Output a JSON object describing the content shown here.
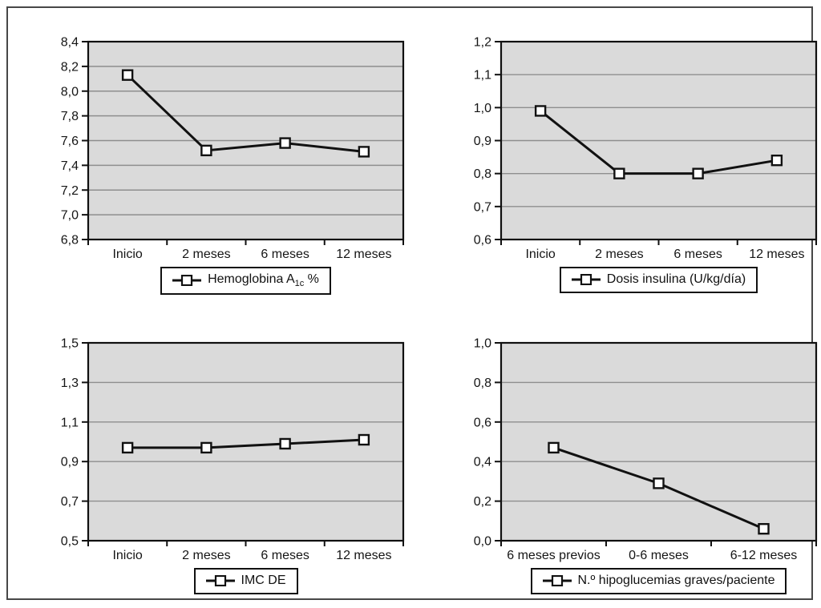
{
  "page": {
    "background": "#ffffff",
    "frame_color": "#474747"
  },
  "colors": {
    "plot_bg": "#dadada",
    "grid": "#8e8e8e",
    "axis": "#101010",
    "line": "#111111",
    "marker_fill": "#ffffff",
    "legend_border": "#111111"
  },
  "chart_data": [
    {
      "type": "line",
      "name": "hemoglobina-a1c",
      "categories": [
        "Inicio",
        "2 meses",
        "6 meses",
        "12 meses"
      ],
      "values": [
        8.13,
        7.52,
        7.58,
        7.51
      ],
      "ylim": [
        6.8,
        8.4
      ],
      "yticks": [
        {
          "v": 6.8,
          "label": "6,8"
        },
        {
          "v": 7.0,
          "label": "7,0"
        },
        {
          "v": 7.2,
          "label": "7,2"
        },
        {
          "v": 7.4,
          "label": "7,4"
        },
        {
          "v": 7.6,
          "label": "7,6"
        },
        {
          "v": 7.8,
          "label": "7,8"
        },
        {
          "v": 8.0,
          "label": "8,0"
        },
        {
          "v": 8.2,
          "label": "8,2"
        },
        {
          "v": 8.4,
          "label": "8,4"
        }
      ],
      "grid": "horizontal",
      "legend_position": "bottom",
      "legend": [
        {
          "t": "Hemoglobina A"
        },
        {
          "t": "1c",
          "sub": true
        },
        {
          "t": " %"
        }
      ]
    },
    {
      "type": "line",
      "name": "dosis-insulina",
      "categories": [
        "Inicio",
        "2 meses",
        "6 meses",
        "12 meses"
      ],
      "values": [
        0.99,
        0.8,
        0.8,
        0.84
      ],
      "ylim": [
        0.6,
        1.2
      ],
      "yticks": [
        {
          "v": 0.6,
          "label": "0,6"
        },
        {
          "v": 0.7,
          "label": "0,7"
        },
        {
          "v": 0.8,
          "label": "0,8"
        },
        {
          "v": 0.9,
          "label": "0,9"
        },
        {
          "v": 1.0,
          "label": "1,0"
        },
        {
          "v": 1.1,
          "label": "1,1"
        },
        {
          "v": 1.2,
          "label": "1,2"
        }
      ],
      "grid": "horizontal",
      "legend_position": "bottom",
      "legend": [
        {
          "t": "Dosis insulina (U/kg/día)"
        }
      ]
    },
    {
      "type": "line",
      "name": "imc-de",
      "categories": [
        "Inicio",
        "2 meses",
        "6 meses",
        "12 meses"
      ],
      "values": [
        0.97,
        0.97,
        0.99,
        1.01
      ],
      "ylim": [
        0.5,
        1.5
      ],
      "yticks": [
        {
          "v": 0.5,
          "label": "0,5"
        },
        {
          "v": 0.7,
          "label": "0,7"
        },
        {
          "v": 0.9,
          "label": "0,9"
        },
        {
          "v": 1.1,
          "label": "1,1"
        },
        {
          "v": 1.3,
          "label": "1,3"
        },
        {
          "v": 1.5,
          "label": "1,5"
        }
      ],
      "grid": "horizontal",
      "legend_position": "bottom",
      "legend": [
        {
          "t": "IMC DE"
        }
      ]
    },
    {
      "type": "line",
      "name": "hipoglucemias-graves",
      "categories": [
        "6 meses previos",
        "0-6 meses",
        "6-12 meses"
      ],
      "values": [
        0.47,
        0.29,
        0.06
      ],
      "ylim": [
        0.0,
        1.0
      ],
      "yticks": [
        {
          "v": 0.0,
          "label": "0,0"
        },
        {
          "v": 0.2,
          "label": "0,2"
        },
        {
          "v": 0.4,
          "label": "0,4"
        },
        {
          "v": 0.6,
          "label": "0,6"
        },
        {
          "v": 0.8,
          "label": "0,8"
        },
        {
          "v": 1.0,
          "label": "1,0"
        }
      ],
      "grid": "horizontal",
      "legend_position": "bottom",
      "legend": [
        {
          "t": "N.º hipoglucemias graves/paciente"
        }
      ]
    }
  ]
}
